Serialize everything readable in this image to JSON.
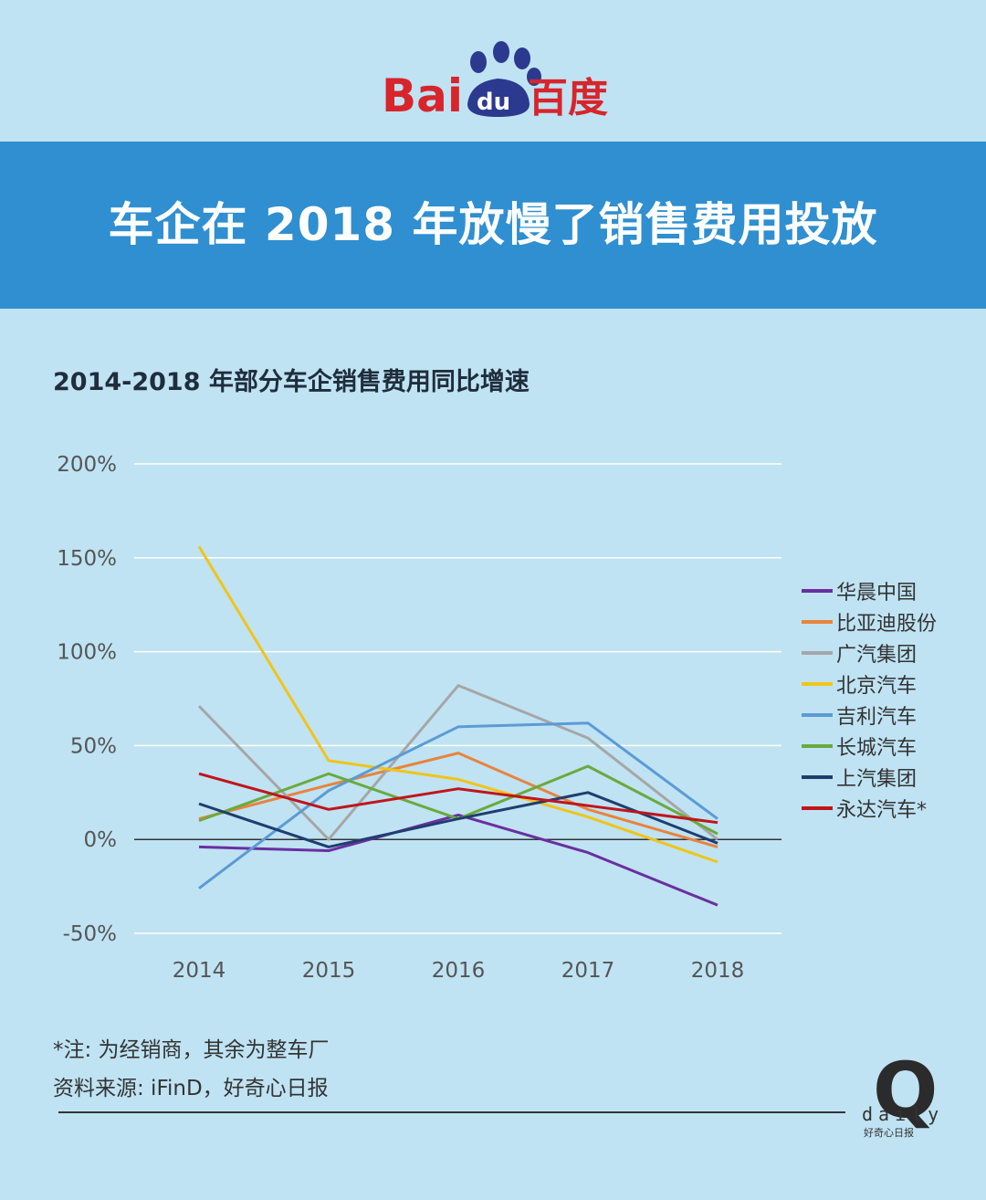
{
  "logo": {
    "brand_latin_1": "Bai",
    "brand_latin_2": "du",
    "brand_cn": "百度"
  },
  "banner": {
    "title": "车企在 2018 年放慢了销售费用投放"
  },
  "chart_data": {
    "type": "line",
    "title": "2014-2018 年部分车企销售费用同比增速",
    "x": [
      "2014",
      "2015",
      "2016",
      "2017",
      "2018"
    ],
    "yticks": [
      "200%",
      "150%",
      "100%",
      "50%",
      "0%",
      "-50%"
    ],
    "ytick_values": [
      200,
      150,
      100,
      50,
      0,
      -50
    ],
    "ylim": [
      -50,
      200
    ],
    "grid": true,
    "legend_position": "right",
    "series": [
      {
        "name": "华晨中国",
        "color": "#6a2fa0",
        "values": [
          -4,
          -6,
          13,
          -7,
          -35
        ]
      },
      {
        "name": "比亚迪股份",
        "color": "#e8843c",
        "values": [
          11,
          29,
          46,
          16,
          -4
        ]
      },
      {
        "name": "广汽集团",
        "color": "#a6a6a6",
        "values": [
          71,
          0,
          82,
          54,
          0
        ]
      },
      {
        "name": "北京汽车",
        "color": "#f0c419",
        "values": [
          156,
          42,
          32,
          12,
          -12
        ]
      },
      {
        "name": "吉利汽车",
        "color": "#5b9bd5",
        "values": [
          -26,
          26,
          60,
          62,
          11
        ]
      },
      {
        "name": "长城汽车",
        "color": "#6aaa3c",
        "values": [
          10,
          35,
          11,
          39,
          3
        ]
      },
      {
        "name": "上汽集团",
        "color": "#1f3e6e",
        "values": [
          19,
          -4,
          11,
          25,
          -2
        ]
      },
      {
        "name": "永达汽车*",
        "color": "#c0151c",
        "values": [
          35,
          16,
          27,
          18,
          9
        ]
      }
    ]
  },
  "footnotes": {
    "note": "*注: 为经销商，其余为整车厂",
    "source": "资料来源: iFinD，好奇心日报"
  },
  "brand_mark": {
    "letter": "Q",
    "word": "daily",
    "sub": "好奇心日报"
  }
}
